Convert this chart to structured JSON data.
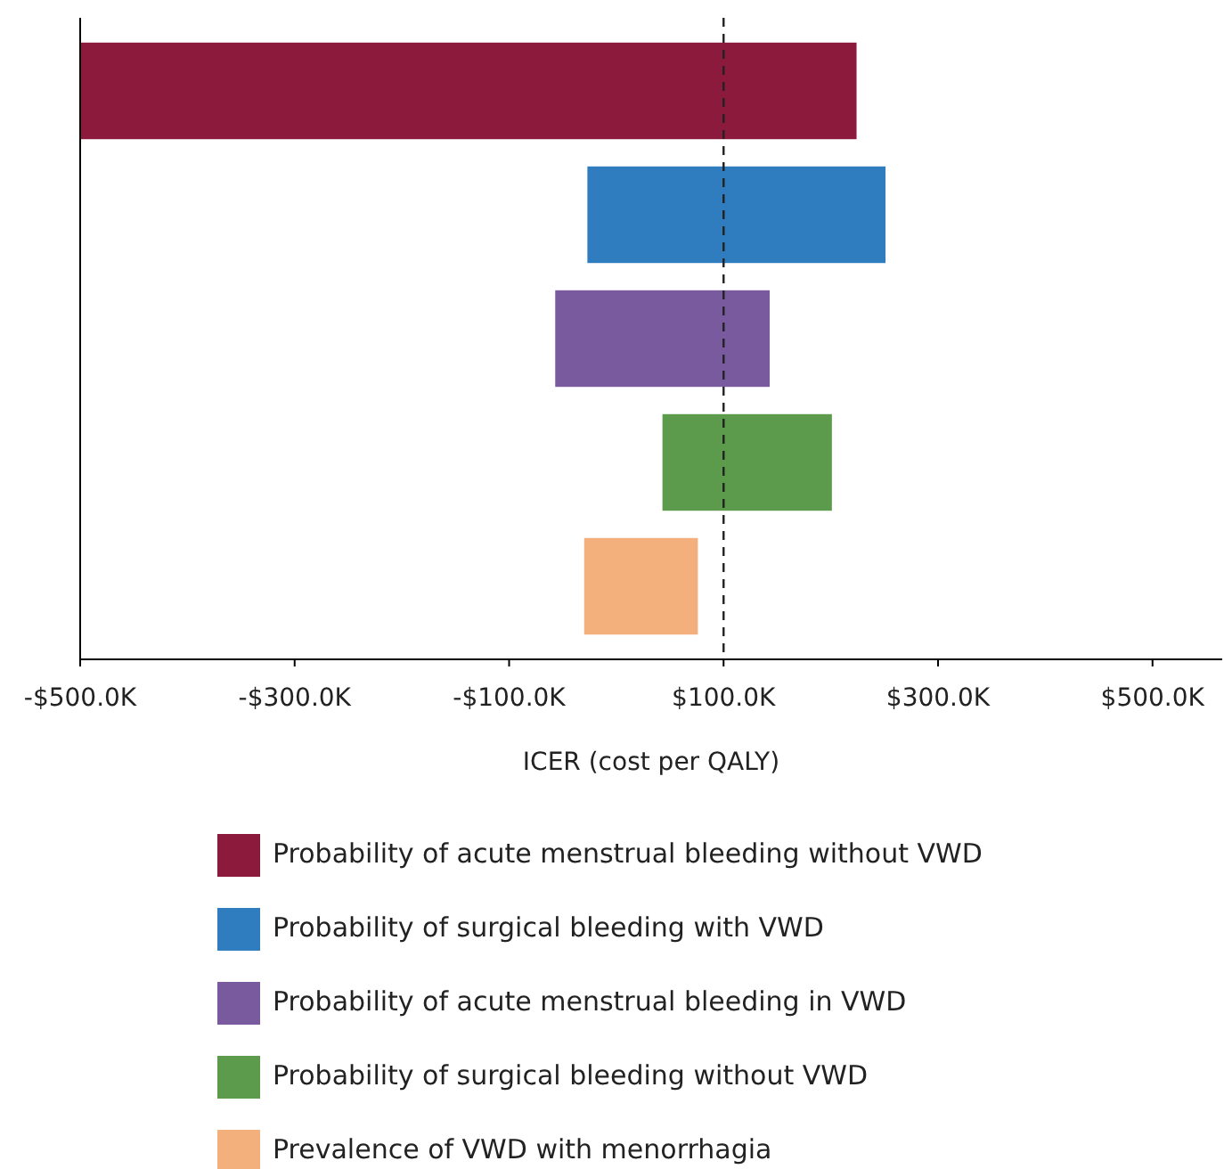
{
  "chart_data": {
    "type": "bar",
    "orientation": "horizontal",
    "xlabel": "ICER (cost per QALY)",
    "categories": [
      null,
      null,
      null,
      null,
      null
    ],
    "series": [
      {
        "name": "Probability of acute menstrual bleeding without VWD",
        "color": "#8b1a3c",
        "values": [
          724,
          null,
          null,
          null,
          null
        ],
        "base": [
          -500,
          null,
          null,
          null,
          null
        ]
      },
      {
        "name": "Probability of surgical bleeding with VWD",
        "color": "#2f7dbf",
        "values": [
          null,
          278,
          null,
          null,
          null
        ],
        "base": [
          null,
          -27,
          null,
          null,
          null
        ]
      },
      {
        "name": "Probability of acute menstrual bleeding in VWD",
        "color": "#7a5a9e",
        "values": [
          null,
          null,
          200,
          null,
          null
        ],
        "base": [
          null,
          null,
          -57,
          null,
          null
        ]
      },
      {
        "name": "Probability of surgical bleeding without VWD",
        "color": "#5c9a4c",
        "values": [
          null,
          null,
          null,
          158,
          null
        ],
        "base": [
          null,
          null,
          null,
          43,
          null
        ]
      },
      {
        "name": "Prevalence of VWD with menorrhagia",
        "color": "#f4b07c",
        "values": [
          null,
          null,
          null,
          null,
          106
        ],
        "base": [
          null,
          null,
          null,
          null,
          -30
        ]
      }
    ],
    "xlim": [
      -500,
      565
    ],
    "xticks": [
      {
        "value": -500,
        "label": "-$500.0K"
      },
      {
        "value": -300,
        "label": "-$300.0K"
      },
      {
        "value": -100,
        "label": "-$100.0K"
      },
      {
        "value": 100,
        "label": "$100.0K"
      },
      {
        "value": 300,
        "label": "$300.0K"
      },
      {
        "value": 500,
        "label": "$500.0K"
      }
    ],
    "ref_lines": [
      {
        "axis": "x",
        "value": 100,
        "line_style": "dashed",
        "color": "#222222"
      }
    ],
    "legend": "bottom",
    "grid": false
  }
}
